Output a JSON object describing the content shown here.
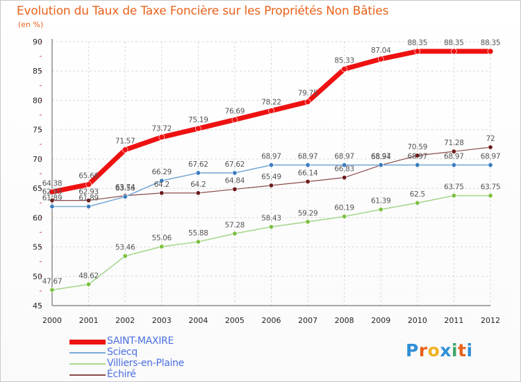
{
  "header": {
    "title": "Evolution du Taux de Taxe Foncière sur les Propriétés Non Bâties",
    "unit": "(en %)"
  },
  "logo": {
    "letters": [
      "P",
      "r",
      "o",
      "x",
      "i",
      "t",
      "i"
    ],
    "colors": [
      "#2e8fd6",
      "#e8611a",
      "#f0b020",
      "#2e8fd6",
      "#3aa86b",
      "#e8611a",
      "#2e8fd6"
    ]
  },
  "chart_data": {
    "type": "line",
    "title": "Evolution du Taux de Taxe Foncière sur les Propriétés Non Bâties",
    "ylabel": "(en %)",
    "xlabel": "",
    "ylim": [
      45,
      90
    ],
    "yticks": [
      45,
      50,
      55,
      60,
      65,
      70,
      75,
      80,
      85,
      90
    ],
    "x": [
      "2000",
      "2001",
      "2002",
      "2003",
      "2004",
      "2005",
      "2006",
      "2007",
      "2008",
      "2009",
      "2010",
      "2011",
      "2012"
    ],
    "series": [
      {
        "name": "SAINT-MAXIRE",
        "color": "#ee1111",
        "width": 7,
        "markerFill": "#ee1111",
        "values": [
          64.38,
          65.66,
          71.57,
          73.72,
          75.19,
          76.69,
          78.22,
          79.75,
          85.33,
          87.04,
          88.35,
          88.35,
          88.35
        ],
        "labels": [
          "64.38",
          "65.66",
          "71.57",
          "73.72",
          "75.19",
          "76.69",
          "78.22",
          "79.75",
          "85.33",
          "87.04",
          "88.35",
          "88.35",
          "88.35"
        ]
      },
      {
        "name": "Sciecq",
        "color": "#7aa9d8",
        "width": 1.6,
        "markerFill": "#3a7cc0",
        "values": [
          61.89,
          61.89,
          63.56,
          66.29,
          67.62,
          67.62,
          68.97,
          68.97,
          68.97,
          68.97,
          68.97,
          68.97,
          68.97
        ],
        "labels": [
          "61.89",
          "61.89",
          "63.56",
          "66.29",
          "67.62",
          "67.62",
          "68.97",
          "68.97",
          "68.97",
          "68.97",
          "68.97",
          "68.97",
          "68.97"
        ]
      },
      {
        "name": "Villiers-en-Plaine",
        "color": "#a8d890",
        "width": 1.6,
        "markerFill": "#7cc040",
        "values": [
          47.67,
          48.62,
          53.46,
          55.06,
          55.88,
          57.28,
          58.43,
          59.29,
          60.19,
          61.39,
          62.5,
          63.75,
          63.75
        ],
        "labels": [
          "47.67",
          "48.62",
          "53.46",
          "55.06",
          "55.88",
          "57.28",
          "58.43",
          "59.29",
          "60.19",
          "61.39",
          "62.5",
          "63.75",
          "63.75"
        ]
      },
      {
        "name": "Échiré",
        "color": "#8a4a4a",
        "width": 1.2,
        "markerFill": "#6e1a1a",
        "values": [
          62.93,
          62.93,
          63.74,
          64.2,
          64.2,
          64.84,
          65.49,
          66.14,
          66.83,
          68.94,
          70.59,
          71.28,
          72
        ],
        "labels": [
          "62.93",
          "62.93",
          "63.74",
          "64.2",
          "64.2",
          "64.84",
          "65.49",
          "66.14",
          "66.83",
          "68.94",
          "70.59",
          "71.28",
          "72"
        ]
      }
    ]
  }
}
